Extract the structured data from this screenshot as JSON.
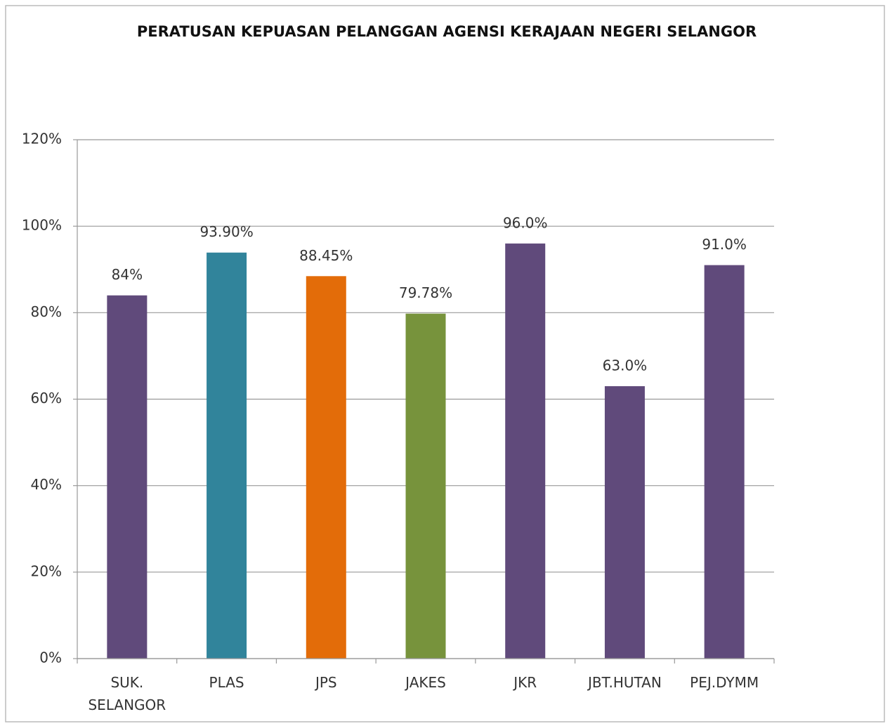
{
  "chart_data": {
    "type": "bar",
    "title": "PERATUSAN KEPUASAN PELANGGAN AGENSI KERAJAAN NEGERI SELANGOR",
    "categories": [
      "SUK. SELANGOR",
      "PLAS",
      "JPS",
      "JAKES",
      "JKR",
      "JBT.HUTAN",
      "PEJ.DYMM"
    ],
    "values": [
      84,
      93.9,
      88.45,
      79.78,
      96,
      63,
      91
    ],
    "value_labels": [
      "84%",
      "93.90%",
      "88.45%",
      "79.78%",
      "96.0%",
      "63.0%",
      "91.0%"
    ],
    "colors": [
      "#604a7b",
      "#31849b",
      "#e36c09",
      "#77933c",
      "#604a7b",
      "#604a7b",
      "#604a7b"
    ],
    "ylim": [
      0,
      120
    ],
    "yticks": [
      {
        "value": 0,
        "label": "0%"
      },
      {
        "value": 20,
        "label": "20%"
      },
      {
        "value": 40,
        "label": "40%"
      },
      {
        "value": 60,
        "label": "60%"
      },
      {
        "value": 80,
        "label": "80%"
      },
      {
        "value": 100,
        "label": "100%"
      },
      {
        "value": 120,
        "label": "120%"
      }
    ],
    "grid": true
  }
}
